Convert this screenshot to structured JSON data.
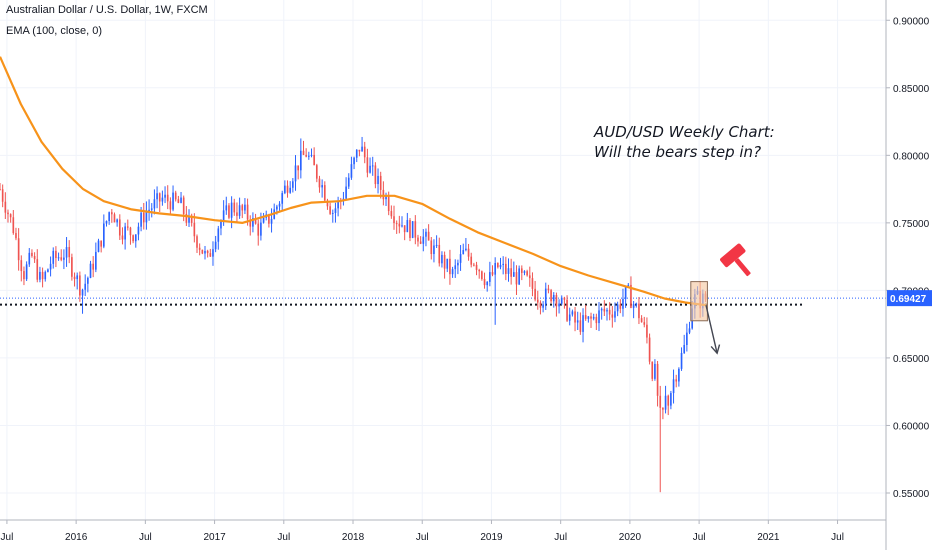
{
  "header": {
    "symbol": "Australian Dollar / U.S. Dollar, 1W, FXCM",
    "indicator": "EMA (100, close, 0)"
  },
  "annotation": {
    "line1": "AUD/USD Weekly Chart:",
    "line2": "Will the bears step in?"
  },
  "last_price": "0.69427",
  "icons": {
    "hammer": "gavel-icon",
    "arrow": "down-arrow-icon"
  },
  "colors": {
    "up": "#2962ff",
    "down": "#ef5350",
    "ema": "#f7931a",
    "box_fill": "#f5c9a5",
    "price_label_bg": "#2962ff",
    "hammer": "#f23645"
  },
  "chart_data": {
    "type": "candlestick",
    "y_axis": {
      "position": "right",
      "ticks": [
        "0.90000",
        "0.85000",
        "0.80000",
        "0.75000",
        "0.70000",
        "0.65000",
        "0.60000",
        "0.55000"
      ],
      "ylim": [
        0.53,
        0.915
      ]
    },
    "x_axis": {
      "ticks": [
        "Jul",
        "2016",
        "Jul",
        "2017",
        "Jul",
        "2018",
        "Jul",
        "2019",
        "Jul",
        "2020",
        "Jul",
        "2021",
        "Jul"
      ],
      "xlim": [
        2015.45,
        2021.85
      ]
    },
    "price_path": [
      [
        2015.45,
        0.775
      ],
      [
        2015.55,
        0.745
      ],
      [
        2015.62,
        0.712
      ],
      [
        2015.68,
        0.725
      ],
      [
        2015.75,
        0.705
      ],
      [
        2015.82,
        0.722
      ],
      [
        2015.92,
        0.728
      ],
      [
        2015.99,
        0.712
      ],
      [
        2016.04,
        0.7
      ],
      [
        2016.1,
        0.713
      ],
      [
        2016.18,
        0.738
      ],
      [
        2016.25,
        0.762
      ],
      [
        2016.32,
        0.745
      ],
      [
        2016.42,
        0.742
      ],
      [
        2016.5,
        0.758
      ],
      [
        2016.62,
        0.768
      ],
      [
        2016.75,
        0.764
      ],
      [
        2016.85,
        0.742
      ],
      [
        2016.95,
        0.722
      ],
      [
        2017.02,
        0.747
      ],
      [
        2017.12,
        0.762
      ],
      [
        2017.22,
        0.757
      ],
      [
        2017.32,
        0.745
      ],
      [
        2017.42,
        0.756
      ],
      [
        2017.52,
        0.778
      ],
      [
        2017.6,
        0.793
      ],
      [
        2017.66,
        0.802
      ],
      [
        2017.76,
        0.782
      ],
      [
        2017.85,
        0.758
      ],
      [
        2017.92,
        0.768
      ],
      [
        2017.99,
        0.79
      ],
      [
        2018.05,
        0.807
      ],
      [
        2018.12,
        0.79
      ],
      [
        2018.22,
        0.772
      ],
      [
        2018.32,
        0.752
      ],
      [
        2018.42,
        0.745
      ],
      [
        2018.52,
        0.738
      ],
      [
        2018.62,
        0.725
      ],
      [
        2018.72,
        0.712
      ],
      [
        2018.8,
        0.728
      ],
      [
        2018.88,
        0.722
      ],
      [
        2018.97,
        0.706
      ],
      [
        2019.05,
        0.718
      ],
      [
        2019.15,
        0.711
      ],
      [
        2019.25,
        0.708
      ],
      [
        2019.35,
        0.694
      ],
      [
        2019.45,
        0.698
      ],
      [
        2019.55,
        0.683
      ],
      [
        2019.62,
        0.674
      ],
      [
        2019.72,
        0.678
      ],
      [
        2019.8,
        0.684
      ],
      [
        2019.9,
        0.686
      ],
      [
        2019.98,
        0.699
      ],
      [
        2020.06,
        0.684
      ],
      [
        2020.12,
        0.666
      ],
      [
        2020.17,
        0.641
      ],
      [
        2020.22,
        0.598
      ],
      [
        2020.27,
        0.621
      ],
      [
        2020.34,
        0.641
      ],
      [
        2020.4,
        0.66
      ],
      [
        2020.45,
        0.69
      ],
      [
        2020.48,
        0.696
      ],
      [
        2020.5,
        0.692
      ],
      [
        2020.55,
        0.694
      ]
    ],
    "wick_extremes": [
      {
        "x": 2016.05,
        "low": 0.6827
      },
      {
        "x": 2017.63,
        "high": 0.8125
      },
      {
        "x": 2018.07,
        "high": 0.8136
      },
      {
        "x": 2019.03,
        "low": 0.6745
      },
      {
        "x": 2020.21,
        "low": 0.5506
      }
    ],
    "ema_100": [
      [
        2015.45,
        0.873
      ],
      [
        2015.6,
        0.838
      ],
      [
        2015.75,
        0.81
      ],
      [
        2015.9,
        0.79
      ],
      [
        2016.05,
        0.775
      ],
      [
        2016.2,
        0.766
      ],
      [
        2016.4,
        0.76
      ],
      [
        2016.6,
        0.757
      ],
      [
        2016.8,
        0.755
      ],
      [
        2017.0,
        0.752
      ],
      [
        2017.2,
        0.75
      ],
      [
        2017.4,
        0.756
      ],
      [
        2017.55,
        0.761
      ],
      [
        2017.7,
        0.765
      ],
      [
        2017.9,
        0.766
      ],
      [
        2018.1,
        0.77
      ],
      [
        2018.3,
        0.77
      ],
      [
        2018.5,
        0.764
      ],
      [
        2018.7,
        0.753
      ],
      [
        2018.9,
        0.743
      ],
      [
        2019.1,
        0.735
      ],
      [
        2019.3,
        0.727
      ],
      [
        2019.5,
        0.718
      ],
      [
        2019.7,
        0.711
      ],
      [
        2019.9,
        0.705
      ],
      [
        2020.1,
        0.699
      ],
      [
        2020.25,
        0.694
      ],
      [
        2020.4,
        0.691
      ],
      [
        2020.55,
        0.689
      ]
    ],
    "support_level": 0.6895,
    "current_price": 0.69427,
    "highlight_box": {
      "x0": 2020.44,
      "x1": 2020.56,
      "y0": 0.6775,
      "y1": 0.7065
    },
    "bear_arrow": {
      "from": [
        2020.55,
        0.689
      ],
      "to": [
        2020.63,
        0.6535
      ]
    },
    "grid": true,
    "legend": "top-left"
  }
}
